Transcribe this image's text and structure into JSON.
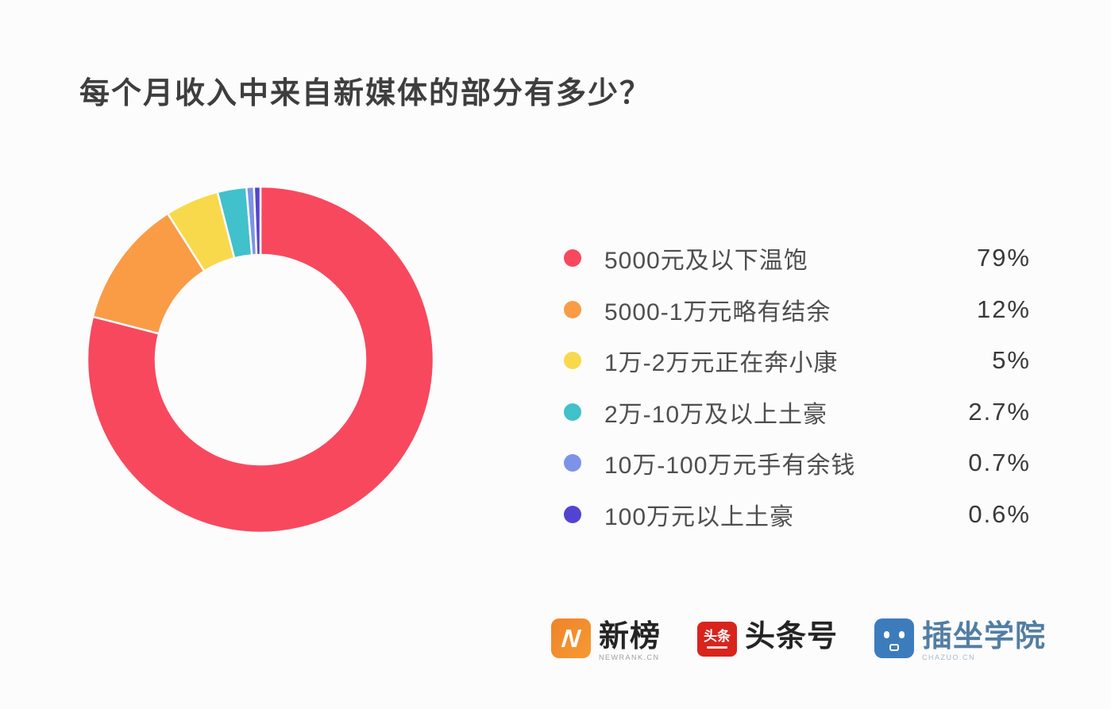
{
  "page": {
    "background": "#FCFCFC"
  },
  "chart_data": {
    "type": "pie",
    "subtype": "donut",
    "title": "每个月收入中来自新媒体的部分有多少？",
    "categories": [
      "5000元及以下温饱",
      "5000-1万元略有结余",
      "1万-2万元正在奔小康",
      "2万-10万及以上土豪",
      "10万-100万元手有余钱",
      "100万元以上土豪"
    ],
    "values": [
      79,
      12,
      5,
      2.7,
      0.7,
      0.6
    ],
    "value_labels": [
      "79%",
      "12%",
      "5%",
      "2.7%",
      "0.7%",
      "0.6%"
    ],
    "unit": "%",
    "colors": [
      "#F8485E",
      "#F99C45",
      "#F8D94B",
      "#41C1CB",
      "#7D93E8",
      "#5244D0"
    ],
    "start_angle_deg": 0,
    "direction": "clockwise",
    "inner_radius_ratio": 0.606,
    "segment_gap_color": "#FCFCFC",
    "legend_position": "right",
    "grid": false
  },
  "footer": {
    "brands": [
      {
        "name": "新榜",
        "subtext": "NEWRANK.CN",
        "icon": "newrank-logo-icon",
        "icon_text": "N",
        "icon_color": "#F0832A"
      },
      {
        "name": "头条号",
        "subtext": "",
        "icon": "toutiao-logo-icon",
        "icon_text": "头条",
        "icon_color": "#D8241D"
      },
      {
        "name": "插坐学院",
        "subtext": "CHAZUO.CN",
        "icon": "chazuo-logo-icon",
        "icon_text": "",
        "icon_color": "#3C7CBD"
      }
    ]
  }
}
